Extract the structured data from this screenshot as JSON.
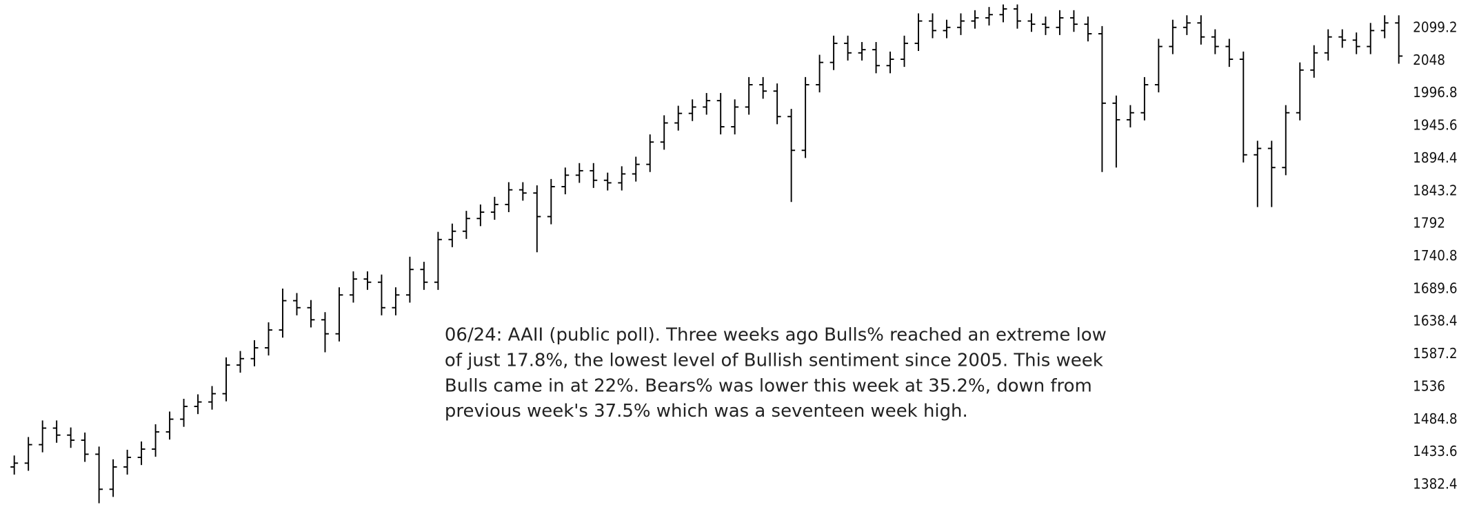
{
  "chart_data": {
    "type": "ohlc",
    "color": "#000000",
    "annotation": [
      "06/24: AAII (public poll). Three weeks ago Bulls% reached an extreme low",
      "of just 17.8%, the lowest level of Bullish sentiment since 2005. This week",
      "Bulls came in at 22%. Bears% was lower this week at 35.2%, down from",
      "previous week's 37.5% which was a seventeen week high."
    ],
    "ylim": [
      1344,
      2143
    ],
    "yticks": [
      1382.4,
      1433.6,
      1484.8,
      1536,
      1587.2,
      1638.4,
      1689.6,
      1740.8,
      1792,
      1843.2,
      1894.4,
      1945.6,
      1996.8,
      2048,
      2099.2
    ],
    "open": [
      1410,
      1416,
      1445,
      1471,
      1460,
      1452,
      1430,
      1375,
      1410,
      1425,
      1438,
      1465,
      1485,
      1505,
      1512,
      1525,
      1570,
      1580,
      1597,
      1625,
      1671,
      1660,
      1641,
      1619,
      1680,
      1705,
      1700,
      1660,
      1680,
      1720,
      1700,
      1767,
      1780,
      1800,
      1810,
      1822,
      1845,
      1840,
      1803,
      1850,
      1868,
      1875,
      1860,
      1856,
      1870,
      1885,
      1920,
      1950,
      1965,
      1975,
      1985,
      1944,
      1975,
      2010,
      2000,
      1960,
      1907,
      2010,
      2045,
      2075,
      2060,
      2065,
      2040,
      2050,
      2075,
      2110,
      2095,
      2100,
      2110,
      2115,
      2120,
      2129,
      2110,
      2105,
      2100,
      2115,
      2105,
      2090,
      1981,
      1955,
      1966,
      2010,
      2070,
      2100,
      2107,
      2085,
      2070,
      2050,
      1900,
      1910,
      1880,
      1966,
      2033,
      2060,
      2085,
      2080,
      2070,
      2095,
      2107
    ],
    "high": [
      1428,
      1457,
      1483,
      1483,
      1472,
      1464,
      1442,
      1422,
      1437,
      1450,
      1477,
      1497,
      1517,
      1524,
      1537,
      1582,
      1592,
      1609,
      1637,
      1690,
      1683,
      1672,
      1653,
      1692,
      1717,
      1717,
      1712,
      1692,
      1740,
      1732,
      1779,
      1792,
      1812,
      1822,
      1834,
      1857,
      1857,
      1852,
      1862,
      1880,
      1887,
      1887,
      1872,
      1882,
      1897,
      1932,
      1962,
      1977,
      1987,
      1997,
      1997,
      1987,
      2022,
      2022,
      2012,
      1972,
      2022,
      2057,
      2087,
      2087,
      2077,
      2077,
      2062,
      2087,
      2122,
      2122,
      2112,
      2122,
      2127,
      2132,
      2136,
      2136,
      2122,
      2117,
      2127,
      2127,
      2117,
      2102,
      1993,
      1978,
      2022,
      2082,
      2112,
      2119,
      2119,
      2097,
      2082,
      2062,
      1922,
      1922,
      1978,
      2045,
      2072,
      2097,
      2097,
      2092,
      2107,
      2119,
      2119
    ],
    "low": [
      1398,
      1404,
      1433,
      1448,
      1440,
      1418,
      1353,
      1363,
      1398,
      1413,
      1426,
      1453,
      1473,
      1493,
      1500,
      1513,
      1558,
      1568,
      1585,
      1613,
      1648,
      1629,
      1590,
      1607,
      1668,
      1688,
      1648,
      1648,
      1668,
      1688,
      1688,
      1755,
      1768,
      1788,
      1798,
      1810,
      1828,
      1747,
      1791,
      1838,
      1856,
      1848,
      1844,
      1844,
      1858,
      1873,
      1908,
      1938,
      1953,
      1963,
      1932,
      1932,
      1963,
      1988,
      1948,
      1826,
      1895,
      1998,
      2033,
      2048,
      2048,
      2028,
      2028,
      2038,
      2063,
      2083,
      2083,
      2088,
      2098,
      2103,
      2108,
      2098,
      2093,
      2088,
      2088,
      2093,
      2078,
      1873,
      1880,
      1943,
      1954,
      1998,
      2058,
      2088,
      2073,
      2058,
      2038,
      1888,
      1818,
      1818,
      1868,
      1954,
      2021,
      2048,
      2068,
      2058,
      2058,
      2083,
      2043
    ],
    "close": [
      1416,
      1445,
      1471,
      1460,
      1452,
      1430,
      1375,
      1410,
      1425,
      1438,
      1465,
      1485,
      1505,
      1512,
      1525,
      1570,
      1580,
      1597,
      1625,
      1671,
      1660,
      1641,
      1619,
      1680,
      1705,
      1700,
      1660,
      1680,
      1720,
      1700,
      1767,
      1780,
      1800,
      1810,
      1822,
      1845,
      1840,
      1803,
      1850,
      1868,
      1875,
      1860,
      1856,
      1870,
      1885,
      1920,
      1950,
      1965,
      1975,
      1985,
      1944,
      1975,
      2010,
      2000,
      1960,
      1907,
      2010,
      2045,
      2075,
      2060,
      2065,
      2040,
      2050,
      2075,
      2110,
      2095,
      2100,
      2110,
      2115,
      2120,
      2129,
      2110,
      2105,
      2100,
      2115,
      2105,
      2090,
      1981,
      1955,
      1966,
      2010,
      2070,
      2100,
      2107,
      2085,
      2070,
      2050,
      1900,
      1910,
      1880,
      1966,
      2033,
      2060,
      2085,
      2080,
      2070,
      2095,
      2107,
      2055
    ]
  }
}
